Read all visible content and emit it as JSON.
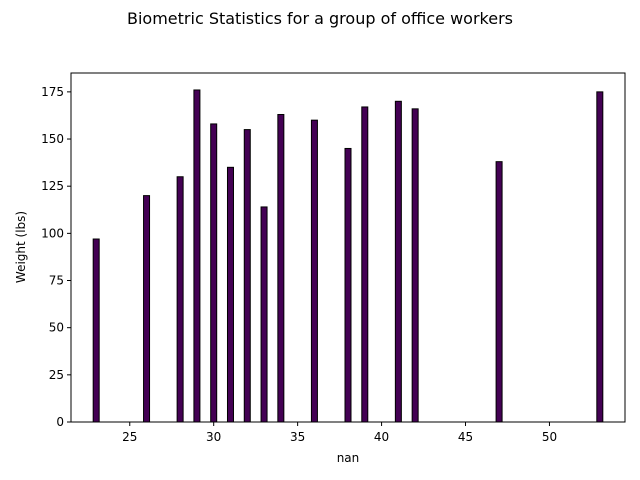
{
  "chart_data": {
    "type": "bar",
    "title": "Biometric Statistics for a group of office workers",
    "xlabel": "nan",
    "ylabel": "Weight (lbs)",
    "x": [
      23,
      26,
      28,
      29,
      30,
      31,
      32,
      33,
      34,
      36,
      38,
      39,
      41,
      42,
      47,
      53
    ],
    "values": [
      97,
      120,
      130,
      176,
      158,
      135,
      155,
      114,
      163,
      160,
      145,
      167,
      170,
      166,
      138,
      175
    ],
    "xlim": [
      21.5,
      54.5
    ],
    "ylim": [
      0,
      185
    ],
    "xticks": [
      25,
      30,
      35,
      40,
      45,
      50
    ],
    "yticks": [
      0,
      25,
      50,
      75,
      100,
      125,
      150,
      175
    ],
    "bar_color": "#440154",
    "edge_color": "#000000",
    "grid": false,
    "legend": "none"
  }
}
